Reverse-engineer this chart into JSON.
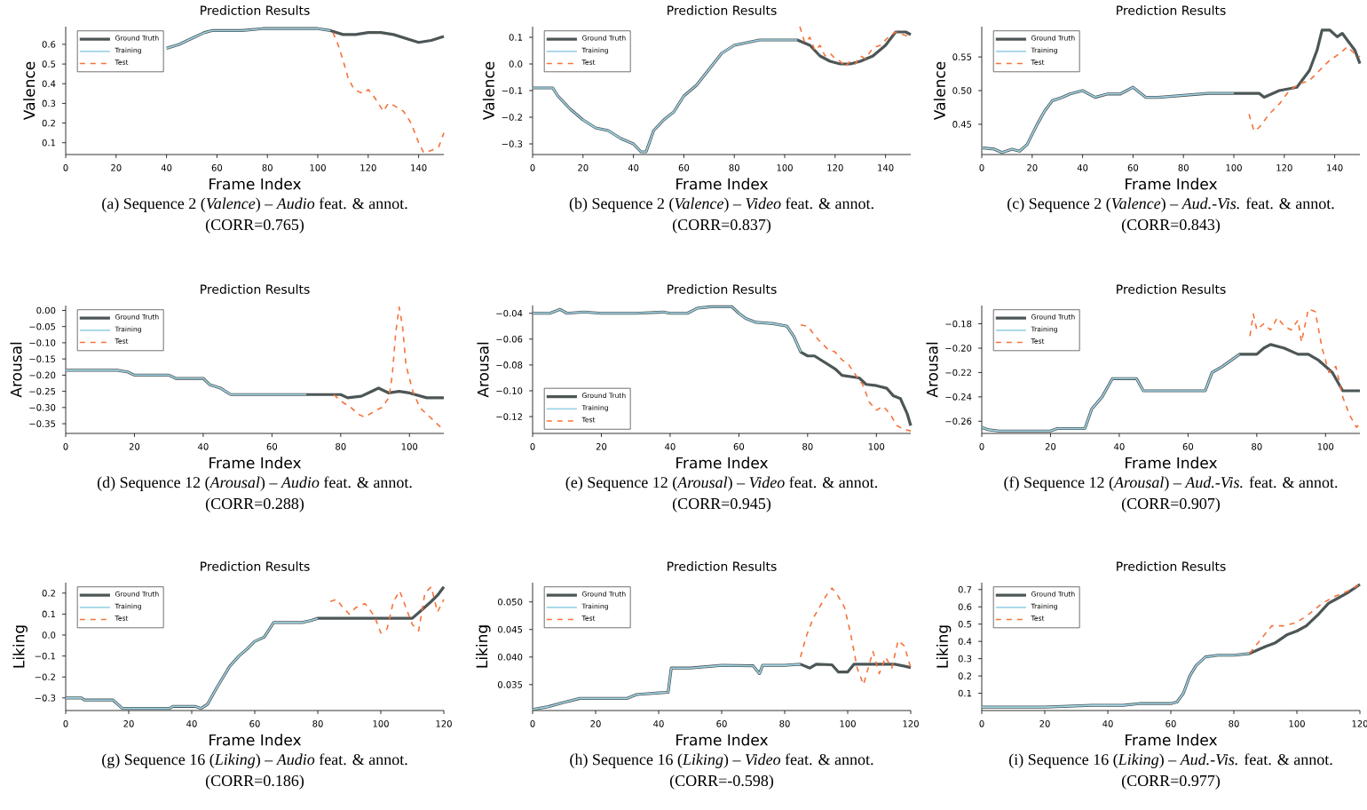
{
  "chart_data": [
    {
      "type": "line",
      "title": "Prediction Results",
      "xlabel": "Frame Index",
      "ylabel": "Valence",
      "legend": "top left",
      "marker": "none",
      "annotations": [
        "(a) Sequence 2 (*Valence*) – *Audio* feat. & annot.",
        "(CORR=0.765)"
      ],
      "xlim": [
        0,
        150
      ],
      "xticks": [
        0,
        20,
        40,
        60,
        80,
        100,
        120,
        140
      ],
      "ylim": [
        0.04,
        0.69
      ],
      "yticks": [
        0.1,
        0.2,
        0.3,
        0.4,
        0.5,
        0.6
      ],
      "series": [
        {
          "name": "Ground Truth",
          "color": "#4d5656",
          "line_style": "solid",
          "x": [
            40,
            45,
            50,
            55,
            58,
            70,
            78,
            100,
            105,
            110,
            115,
            120,
            125,
            130,
            135,
            140,
            145,
            150
          ],
          "values": [
            0.58,
            0.6,
            0.63,
            0.66,
            0.67,
            0.67,
            0.68,
            0.68,
            0.67,
            0.65,
            0.65,
            0.66,
            0.66,
            0.65,
            0.63,
            0.61,
            0.62,
            0.64
          ]
        },
        {
          "name": "Training",
          "color": "#9fd4e6",
          "line_style": "solid",
          "x": [
            40,
            45,
            50,
            55,
            58,
            70,
            78,
            100,
            105
          ],
          "values": [
            0.58,
            0.6,
            0.63,
            0.66,
            0.67,
            0.67,
            0.68,
            0.68,
            0.67
          ]
        },
        {
          "name": "Test",
          "color": "#f4733c",
          "line_style": "dashed",
          "x": [
            106,
            108,
            110,
            112,
            114,
            116,
            118,
            120,
            122,
            124,
            126,
            128,
            130,
            134,
            137,
            140,
            142,
            145,
            148,
            150
          ],
          "values": [
            0.66,
            0.6,
            0.52,
            0.43,
            0.38,
            0.36,
            0.35,
            0.37,
            0.34,
            0.3,
            0.26,
            0.3,
            0.29,
            0.26,
            0.2,
            0.1,
            0.05,
            0.06,
            0.08,
            0.15
          ]
        }
      ]
    },
    {
      "type": "line",
      "title": "Prediction Results",
      "xlabel": "Frame Index",
      "ylabel": "Valence",
      "legend": "top left",
      "marker": "none",
      "annotations": [
        "(b) Sequence 2 (*Valence*) – *Video* feat. & annot.",
        "(CORR=0.837)"
      ],
      "xlim": [
        0,
        150
      ],
      "xticks": [
        0,
        20,
        40,
        60,
        80,
        100,
        120,
        140
      ],
      "ylim": [
        -0.34,
        0.14
      ],
      "yticks": [
        {
          "value": -0.3,
          "label": "−0.3"
        },
        {
          "value": -0.2,
          "label": "−0.2"
        },
        {
          "value": -0.1,
          "label": "−0.1"
        },
        {
          "value": 0,
          "label": "0.0"
        },
        {
          "value": 0.1,
          "label": "0.1"
        }
      ],
      "series": [
        {
          "name": "Ground Truth",
          "color": "#4d5656",
          "line_style": "solid",
          "x": [
            0,
            8,
            10,
            15,
            20,
            25,
            30,
            35,
            40,
            43,
            45,
            48,
            52,
            56,
            60,
            65,
            70,
            75,
            80,
            85,
            90,
            95,
            105,
            110,
            114,
            118,
            122,
            126,
            130,
            135,
            140,
            144,
            148,
            150
          ],
          "values": [
            -0.09,
            -0.09,
            -0.12,
            -0.17,
            -0.21,
            -0.24,
            -0.25,
            -0.28,
            -0.3,
            -0.33,
            -0.33,
            -0.25,
            -0.21,
            -0.18,
            -0.12,
            -0.08,
            -0.02,
            0.04,
            0.07,
            0.08,
            0.09,
            0.09,
            0.09,
            0.07,
            0.03,
            0.01,
            0.0,
            0.0,
            0.01,
            0.03,
            0.07,
            0.12,
            0.12,
            0.11
          ]
        },
        {
          "name": "Training",
          "color": "#9fd4e6",
          "line_style": "solid",
          "x": [
            0,
            8,
            10,
            15,
            20,
            25,
            30,
            35,
            40,
            43,
            45,
            48,
            52,
            56,
            60,
            65,
            70,
            75,
            80,
            85,
            90,
            95,
            105
          ],
          "values": [
            -0.09,
            -0.09,
            -0.12,
            -0.17,
            -0.21,
            -0.24,
            -0.25,
            -0.28,
            -0.3,
            -0.33,
            -0.33,
            -0.25,
            -0.21,
            -0.18,
            -0.12,
            -0.08,
            -0.02,
            0.04,
            0.07,
            0.08,
            0.09,
            0.09,
            0.09
          ]
        },
        {
          "name": "Test",
          "color": "#f4733c",
          "line_style": "dashed",
          "x": [
            106,
            108,
            110,
            112,
            114,
            116,
            118,
            120,
            122,
            124,
            126,
            128,
            130,
            132,
            135,
            138,
            141,
            144,
            147,
            150
          ],
          "values": [
            0.14,
            0.08,
            0.1,
            0.05,
            0.07,
            0.03,
            0.04,
            0.02,
            0.01,
            -0.01,
            0.01,
            0.0,
            0.03,
            0.02,
            0.06,
            0.07,
            0.1,
            0.12,
            0.11,
            0.1
          ]
        }
      ]
    },
    {
      "type": "line",
      "title": "Prediction Results",
      "xlabel": "Frame Index",
      "ylabel": "Valence",
      "legend": "top left",
      "marker": "none",
      "annotations": [
        "(c) Sequence 2 (*Valence*) – *Aud.-Vis.* feat. & annot.",
        "(CORR=0.843)"
      ],
      "xlim": [
        0,
        150
      ],
      "xticks": [
        0,
        20,
        40,
        60,
        80,
        100,
        120,
        140
      ],
      "ylim": [
        0.405,
        0.595
      ],
      "yticks": [
        0.45,
        {
          "value": 0.5,
          "label": "0.50"
        },
        0.55
      ],
      "series": [
        {
          "name": "Ground Truth",
          "color": "#4d5656",
          "line_style": "solid",
          "x": [
            0,
            5,
            8,
            12,
            15,
            18,
            22,
            25,
            28,
            32,
            35,
            40,
            45,
            50,
            55,
            60,
            65,
            70,
            80,
            90,
            100,
            110,
            112,
            118,
            125,
            130,
            133,
            135,
            138,
            141,
            143,
            146,
            148,
            150
          ],
          "values": [
            0.415,
            0.413,
            0.408,
            0.413,
            0.41,
            0.42,
            0.45,
            0.47,
            0.485,
            0.49,
            0.495,
            0.5,
            0.49,
            0.495,
            0.495,
            0.505,
            0.49,
            0.49,
            0.493,
            0.496,
            0.496,
            0.496,
            0.49,
            0.5,
            0.505,
            0.53,
            0.56,
            0.59,
            0.59,
            0.58,
            0.585,
            0.57,
            0.56,
            0.54
          ]
        },
        {
          "name": "Training",
          "color": "#9fd4e6",
          "line_style": "solid",
          "x": [
            0,
            5,
            8,
            12,
            15,
            18,
            22,
            25,
            28,
            32,
            35,
            40,
            45,
            50,
            55,
            60,
            65,
            70,
            80,
            90,
            100
          ],
          "values": [
            0.415,
            0.413,
            0.408,
            0.413,
            0.41,
            0.42,
            0.45,
            0.47,
            0.485,
            0.49,
            0.495,
            0.5,
            0.49,
            0.495,
            0.495,
            0.505,
            0.49,
            0.49,
            0.493,
            0.496,
            0.496
          ]
        },
        {
          "name": "Test",
          "color": "#f4733c",
          "line_style": "dashed",
          "x": [
            106,
            108,
            110,
            114,
            118,
            122,
            126,
            130,
            134,
            138,
            142,
            145,
            148,
            150
          ],
          "values": [
            0.465,
            0.44,
            0.445,
            0.465,
            0.48,
            0.5,
            0.51,
            0.515,
            0.53,
            0.545,
            0.555,
            0.565,
            0.555,
            0.55
          ]
        }
      ]
    },
    {
      "type": "line",
      "title": "Prediction Results",
      "xlabel": "Frame Index",
      "ylabel": "Arousal",
      "legend": "top left",
      "marker": "none",
      "annotations": [
        "(d) Sequence 12 (*Arousal*) – *Audio* feat. & annot.",
        "(CORR=0.288)"
      ],
      "xlim": [
        0,
        110
      ],
      "xticks": [
        0,
        20,
        40,
        60,
        80,
        100
      ],
      "ylim": [
        -0.38,
        0.015
      ],
      "yticks": [
        {
          "value": -0.35,
          "label": "−0.35"
        },
        {
          "value": -0.3,
          "label": "−0.30"
        },
        {
          "value": -0.25,
          "label": "−0.25"
        },
        {
          "value": -0.2,
          "label": "−0.20"
        },
        {
          "value": -0.15,
          "label": "−0.15"
        },
        {
          "value": -0.1,
          "label": "−0.10"
        },
        {
          "value": -0.05,
          "label": "−0.05"
        },
        {
          "value": 0,
          "label": "0.00"
        }
      ],
      "series": [
        {
          "name": "Ground Truth",
          "color": "#4d5656",
          "line_style": "solid",
          "x": [
            0,
            10,
            15,
            18,
            20,
            30,
            32,
            40,
            42,
            45,
            48,
            60,
            70,
            80,
            82,
            86,
            88,
            91,
            94,
            97,
            100,
            105,
            110
          ],
          "values": [
            -0.185,
            -0.185,
            -0.185,
            -0.19,
            -0.2,
            -0.2,
            -0.21,
            -0.21,
            -0.23,
            -0.24,
            -0.26,
            -0.26,
            -0.26,
            -0.26,
            -0.27,
            -0.265,
            -0.255,
            -0.24,
            -0.255,
            -0.25,
            -0.255,
            -0.27,
            -0.27
          ]
        },
        {
          "name": "Training",
          "color": "#9fd4e6",
          "line_style": "solid",
          "x": [
            0,
            10,
            15,
            18,
            20,
            30,
            32,
            40,
            42,
            45,
            48,
            60,
            70
          ],
          "values": [
            -0.185,
            -0.185,
            -0.185,
            -0.19,
            -0.2,
            -0.2,
            -0.21,
            -0.21,
            -0.23,
            -0.24,
            -0.26,
            -0.26,
            -0.26
          ]
        },
        {
          "name": "Test",
          "color": "#f4733c",
          "line_style": "dashed",
          "x": [
            78,
            80,
            83,
            85,
            87,
            90,
            92,
            94,
            95,
            96,
            97,
            98,
            99,
            101,
            103,
            106,
            110
          ],
          "values": [
            -0.26,
            -0.28,
            -0.3,
            -0.32,
            -0.33,
            -0.31,
            -0.3,
            -0.27,
            -0.2,
            -0.07,
            0.01,
            -0.05,
            -0.17,
            -0.25,
            -0.3,
            -0.33,
            -0.37
          ]
        }
      ]
    },
    {
      "type": "line",
      "title": "Prediction Results",
      "xlabel": "Frame Index",
      "ylabel": "Arousal",
      "legend": "bottom left",
      "marker": "none",
      "annotations": [
        "(e) Sequence 12 (*Arousal*) – *Video* feat. & annot.",
        "(CORR=0.945)"
      ],
      "xlim": [
        0,
        110
      ],
      "xticks": [
        0,
        20,
        40,
        60,
        80,
        100
      ],
      "ylim": [
        -0.133,
        -0.034
      ],
      "yticks": [
        {
          "value": -0.12,
          "label": "−0.12"
        },
        {
          "value": -0.1,
          "label": "−0.10"
        },
        {
          "value": -0.08,
          "label": "−0.08"
        },
        {
          "value": -0.06,
          "label": "−0.06"
        },
        {
          "value": -0.04,
          "label": "−0.04"
        }
      ],
      "series": [
        {
          "name": "Ground Truth",
          "color": "#4d5656",
          "line_style": "solid",
          "x": [
            0,
            5,
            8,
            10,
            15,
            20,
            30,
            38,
            40,
            45,
            48,
            52,
            58,
            60,
            62,
            65,
            70,
            74,
            76,
            78,
            80,
            82,
            85,
            88,
            90,
            95,
            97,
            100,
            103,
            105,
            107,
            109,
            110
          ],
          "values": [
            -0.04,
            -0.04,
            -0.037,
            -0.04,
            -0.039,
            -0.04,
            -0.04,
            -0.039,
            -0.04,
            -0.04,
            -0.036,
            -0.035,
            -0.035,
            -0.04,
            -0.044,
            -0.047,
            -0.048,
            -0.05,
            -0.058,
            -0.07,
            -0.073,
            -0.073,
            -0.078,
            -0.083,
            -0.088,
            -0.09,
            -0.095,
            -0.096,
            -0.098,
            -0.104,
            -0.106,
            -0.118,
            -0.127
          ]
        },
        {
          "name": "Training",
          "color": "#9fd4e6",
          "line_style": "solid",
          "x": [
            0,
            5,
            8,
            10,
            15,
            20,
            30,
            38,
            40,
            45,
            48,
            52,
            58,
            60,
            62,
            65,
            70,
            74,
            76,
            78
          ],
          "values": [
            -0.04,
            -0.04,
            -0.037,
            -0.04,
            -0.039,
            -0.04,
            -0.04,
            -0.039,
            -0.04,
            -0.04,
            -0.036,
            -0.035,
            -0.035,
            -0.04,
            -0.044,
            -0.047,
            -0.048,
            -0.05,
            -0.058,
            -0.07
          ]
        },
        {
          "name": "Test",
          "color": "#f4733c",
          "line_style": "dashed",
          "x": [
            78,
            80,
            82,
            84,
            86,
            88,
            90,
            92,
            94,
            96,
            98,
            100,
            102,
            104,
            106,
            108,
            110
          ],
          "values": [
            -0.049,
            -0.05,
            -0.057,
            -0.063,
            -0.068,
            -0.07,
            -0.076,
            -0.08,
            -0.088,
            -0.095,
            -0.109,
            -0.115,
            -0.112,
            -0.118,
            -0.127,
            -0.13,
            -0.131
          ]
        }
      ]
    },
    {
      "type": "line",
      "title": "Prediction Results",
      "xlabel": "Frame Index",
      "ylabel": "Arousal",
      "legend": "top left",
      "marker": "none",
      "annotations": [
        "(f) Sequence 12 (*Arousal*) – *Aud.-Vis.* feat. & annot.",
        "(CORR=0.907)"
      ],
      "xlim": [
        0,
        110
      ],
      "xticks": [
        0,
        20,
        40,
        60,
        80,
        100
      ],
      "ylim": [
        -0.27,
        -0.165
      ],
      "yticks": [
        {
          "value": -0.26,
          "label": "−0.26"
        },
        {
          "value": -0.24,
          "label": "−0.24"
        },
        {
          "value": -0.22,
          "label": "−0.22"
        },
        {
          "value": -0.2,
          "label": "−0.20"
        },
        {
          "value": -0.18,
          "label": "−0.18"
        }
      ],
      "series": [
        {
          "name": "Ground Truth",
          "color": "#4d5656",
          "line_style": "solid",
          "x": [
            0,
            2,
            5,
            10,
            20,
            22,
            30,
            32,
            35,
            38,
            45,
            47,
            65,
            67,
            70,
            75,
            80,
            82,
            84,
            88,
            92,
            95,
            98,
            100,
            102,
            105,
            110
          ],
          "values": [
            -0.265,
            -0.267,
            -0.268,
            -0.268,
            -0.268,
            -0.266,
            -0.266,
            -0.25,
            -0.24,
            -0.225,
            -0.225,
            -0.235,
            -0.235,
            -0.22,
            -0.215,
            -0.205,
            -0.205,
            -0.2,
            -0.197,
            -0.2,
            -0.205,
            -0.205,
            -0.21,
            -0.215,
            -0.22,
            -0.235,
            -0.235
          ]
        },
        {
          "name": "Training",
          "color": "#9fd4e6",
          "line_style": "solid",
          "x": [
            0,
            2,
            5,
            10,
            20,
            22,
            30,
            32,
            35,
            38,
            45,
            47,
            65,
            67,
            70,
            75
          ],
          "values": [
            -0.265,
            -0.267,
            -0.268,
            -0.268,
            -0.268,
            -0.266,
            -0.266,
            -0.25,
            -0.24,
            -0.225,
            -0.225,
            -0.235,
            -0.235,
            -0.22,
            -0.215,
            -0.205
          ]
        },
        {
          "name": "Test",
          "color": "#f4733c",
          "line_style": "dashed",
          "x": [
            78,
            79,
            80,
            82,
            84,
            86,
            88,
            90,
            92,
            93,
            95,
            97,
            99,
            101,
            103,
            105,
            107,
            109,
            110
          ],
          "values": [
            -0.19,
            -0.172,
            -0.185,
            -0.18,
            -0.185,
            -0.175,
            -0.182,
            -0.185,
            -0.177,
            -0.195,
            -0.168,
            -0.17,
            -0.2,
            -0.22,
            -0.215,
            -0.24,
            -0.255,
            -0.265,
            -0.262
          ]
        }
      ]
    },
    {
      "type": "line",
      "title": "Prediction Results",
      "xlabel": "Frame Index",
      "ylabel": "Liking",
      "legend": "top left",
      "marker": "none",
      "annotations": [
        "(g) Sequence 16 (*Liking*) – *Audio* feat. & annot.",
        "(CORR=0.186)"
      ],
      "xlim": [
        0,
        120
      ],
      "xticks": [
        0,
        20,
        40,
        60,
        80,
        100,
        120
      ],
      "ylim": [
        -0.36,
        0.25
      ],
      "yticks": [
        {
          "value": -0.3,
          "label": "−0.3"
        },
        {
          "value": -0.2,
          "label": "−0.2"
        },
        {
          "value": -0.1,
          "label": "−0.1"
        },
        {
          "value": 0,
          "label": "0.0"
        },
        0.1,
        0.2
      ],
      "series": [
        {
          "name": "Ground Truth",
          "color": "#4d5656",
          "line_style": "solid",
          "x": [
            0,
            5,
            6,
            15,
            18,
            33,
            34,
            41,
            43,
            45,
            48,
            52,
            55,
            58,
            60,
            63,
            66,
            75,
            78,
            80,
            100,
            110,
            113,
            116,
            118,
            120
          ],
          "values": [
            -0.3,
            -0.3,
            -0.31,
            -0.31,
            -0.35,
            -0.35,
            -0.34,
            -0.34,
            -0.35,
            -0.33,
            -0.25,
            -0.15,
            -0.1,
            -0.06,
            -0.03,
            -0.01,
            0.06,
            0.06,
            0.07,
            0.08,
            0.08,
            0.08,
            0.12,
            0.16,
            0.19,
            0.23
          ]
        },
        {
          "name": "Training",
          "color": "#9fd4e6",
          "line_style": "solid",
          "x": [
            0,
            5,
            6,
            15,
            18,
            33,
            34,
            41,
            43,
            45,
            48,
            52,
            55,
            58,
            60,
            63,
            66,
            75,
            78,
            80
          ],
          "values": [
            -0.3,
            -0.3,
            -0.31,
            -0.31,
            -0.35,
            -0.35,
            -0.34,
            -0.34,
            -0.35,
            -0.33,
            -0.25,
            -0.15,
            -0.1,
            -0.06,
            -0.03,
            -0.01,
            0.06,
            0.06,
            0.07,
            0.08
          ]
        },
        {
          "name": "Test",
          "color": "#f4733c",
          "line_style": "dashed",
          "x": [
            84,
            86,
            88,
            90,
            92,
            95,
            98,
            100,
            102,
            104,
            106,
            108,
            110,
            112,
            114,
            116,
            118,
            120
          ],
          "values": [
            0.16,
            0.17,
            0.13,
            0.1,
            0.13,
            0.15,
            0.09,
            0.01,
            0.03,
            0.16,
            0.21,
            0.13,
            0.05,
            0.02,
            0.2,
            0.23,
            0.11,
            0.17
          ]
        }
      ]
    },
    {
      "type": "line",
      "title": "Prediction Results",
      "xlabel": "Frame Index",
      "ylabel": "Liking",
      "legend": "top left",
      "marker": "none",
      "annotations": [
        "(h) Sequence 16 (*Liking*) – *Video* feat. & annot.",
        "(CORR=-0.598)"
      ],
      "xlim": [
        0,
        120
      ],
      "xticks": [
        0,
        20,
        40,
        60,
        80,
        100,
        120
      ],
      "ylim": [
        0.0303,
        0.0535
      ],
      "yticks": [
        0.035,
        {
          "value": 0.04,
          "label": "0.040"
        },
        0.045,
        {
          "value": 0.05,
          "label": "0.050"
        }
      ],
      "series": [
        {
          "name": "Ground Truth",
          "color": "#4d5656",
          "line_style": "solid",
          "x": [
            0,
            5,
            10,
            15,
            20,
            30,
            33,
            40,
            43,
            44,
            50,
            60,
            70,
            72,
            73,
            80,
            85,
            88,
            90,
            95,
            97,
            100,
            102,
            110,
            115,
            120
          ],
          "values": [
            0.0305,
            0.031,
            0.0318,
            0.0325,
            0.0325,
            0.0325,
            0.0332,
            0.0335,
            0.0336,
            0.038,
            0.038,
            0.0385,
            0.0384,
            0.037,
            0.0385,
            0.0385,
            0.0387,
            0.038,
            0.0387,
            0.0386,
            0.0373,
            0.0373,
            0.0387,
            0.0387,
            0.0387,
            0.0381
          ]
        },
        {
          "name": "Training",
          "color": "#9fd4e6",
          "line_style": "solid",
          "x": [
            0,
            5,
            10,
            15,
            20,
            30,
            33,
            40,
            43,
            44,
            50,
            60,
            70,
            72,
            73,
            80,
            85
          ],
          "values": [
            0.0305,
            0.031,
            0.0318,
            0.0325,
            0.0325,
            0.0325,
            0.0332,
            0.0335,
            0.0336,
            0.038,
            0.038,
            0.0385,
            0.0384,
            0.037,
            0.0385,
            0.0385,
            0.0387
          ]
        },
        {
          "name": "Test",
          "color": "#f4733c",
          "line_style": "dashed",
          "x": [
            85,
            87,
            89,
            91,
            93,
            95,
            97,
            99,
            101,
            103,
            105,
            107,
            108,
            110,
            112,
            114,
            116,
            118,
            120
          ],
          "values": [
            0.04,
            0.044,
            0.047,
            0.049,
            0.051,
            0.0525,
            0.051,
            0.049,
            0.044,
            0.038,
            0.035,
            0.039,
            0.041,
            0.037,
            0.04,
            0.038,
            0.043,
            0.042,
            0.038
          ]
        }
      ]
    },
    {
      "type": "line",
      "title": "Prediction Results",
      "xlabel": "Frame Index",
      "ylabel": "Liking",
      "legend": "top left",
      "marker": "none",
      "annotations": [
        "(i) Sequence 16 (*Liking*) – *Aud.-Vis.* feat. & annot.",
        "(CORR=0.977)"
      ],
      "xlim": [
        0,
        120
      ],
      "xticks": [
        0,
        20,
        40,
        60,
        80,
        100,
        120
      ],
      "ylim": [
        0,
        0.74
      ],
      "yticks": [
        0.1,
        0.2,
        0.3,
        0.4,
        0.5,
        0.6,
        0.7
      ],
      "series": [
        {
          "name": "Ground Truth",
          "color": "#4d5656",
          "line_style": "solid",
          "x": [
            0,
            20,
            35,
            45,
            50,
            60,
            62,
            64,
            66,
            68,
            71,
            75,
            80,
            85,
            90,
            93,
            97,
            100,
            103,
            107,
            110,
            113,
            116,
            120
          ],
          "values": [
            0.02,
            0.02,
            0.03,
            0.03,
            0.04,
            0.04,
            0.05,
            0.1,
            0.2,
            0.26,
            0.31,
            0.32,
            0.32,
            0.33,
            0.37,
            0.39,
            0.44,
            0.46,
            0.49,
            0.56,
            0.62,
            0.65,
            0.68,
            0.73
          ]
        },
        {
          "name": "Training",
          "color": "#9fd4e6",
          "line_style": "solid",
          "x": [
            0,
            20,
            35,
            45,
            50,
            60,
            62,
            64,
            66,
            68,
            71,
            75,
            80,
            85
          ],
          "values": [
            0.02,
            0.02,
            0.03,
            0.03,
            0.04,
            0.04,
            0.05,
            0.1,
            0.2,
            0.26,
            0.31,
            0.32,
            0.32,
            0.33
          ]
        },
        {
          "name": "Test",
          "color": "#f4733c",
          "line_style": "dashed",
          "x": [
            85,
            88,
            92,
            96,
            100,
            104,
            108,
            112,
            116,
            120
          ],
          "values": [
            0.33,
            0.4,
            0.49,
            0.49,
            0.51,
            0.56,
            0.62,
            0.66,
            0.69,
            0.73
          ]
        }
      ]
    }
  ]
}
